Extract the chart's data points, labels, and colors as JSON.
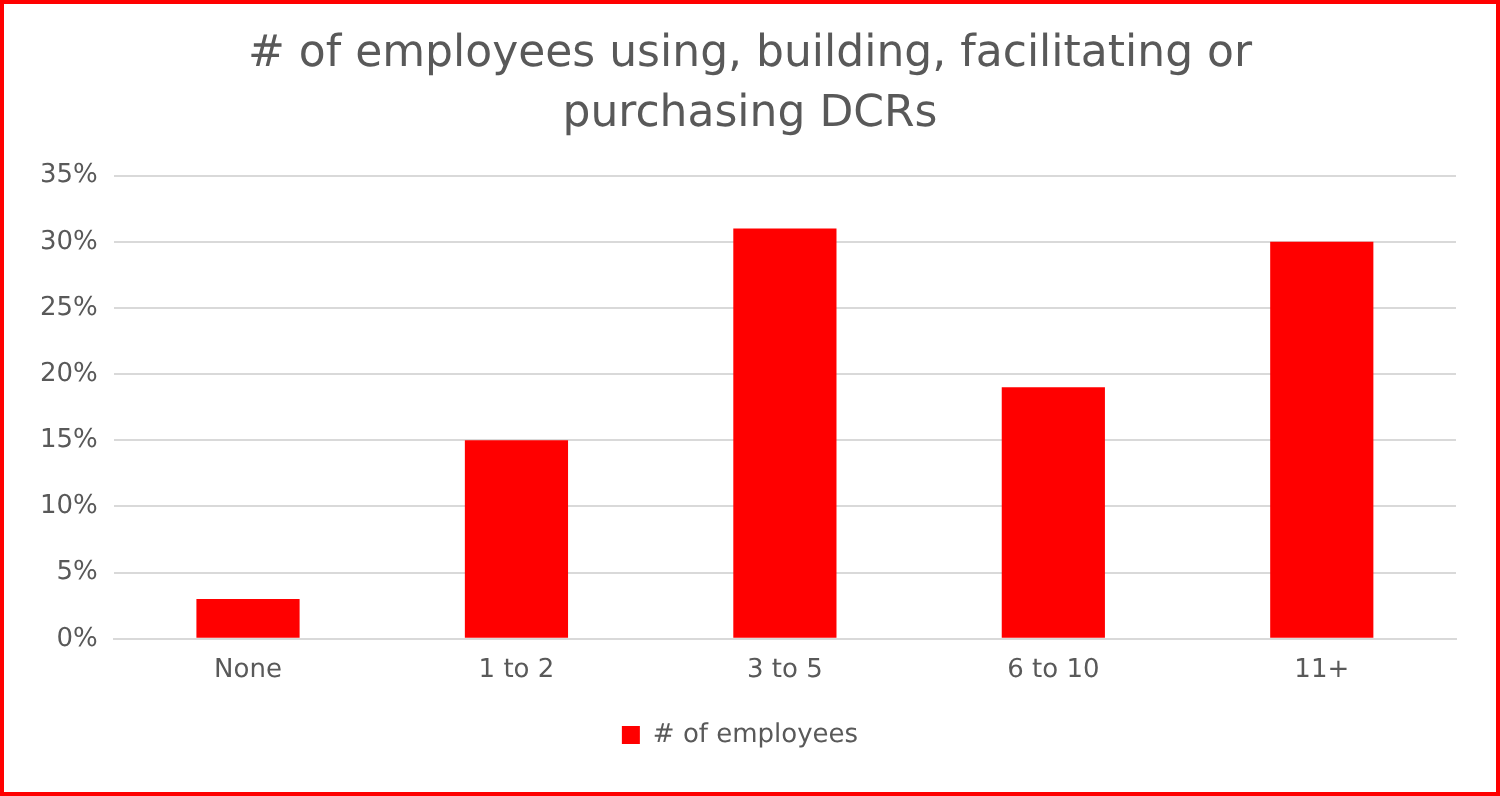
{
  "chart_data": {
    "type": "bar",
    "title": "# of employees using, building, facilitating or purchasing DCRs",
    "categories": [
      "None",
      "1 to 2",
      "3 to 5",
      "6 to 10",
      "11+"
    ],
    "series": [
      {
        "name": "# of employees",
        "color": "#ff0000",
        "values": [
          3,
          15,
          31,
          19,
          30
        ]
      }
    ],
    "ylim": [
      0,
      35
    ],
    "yticks": [
      {
        "value": 0,
        "label": "0%"
      },
      {
        "value": 5,
        "label": "5%"
      },
      {
        "value": 10,
        "label": "10%"
      },
      {
        "value": 15,
        "label": "15%"
      },
      {
        "value": 20,
        "label": "20%"
      },
      {
        "value": 25,
        "label": "25%"
      },
      {
        "value": 30,
        "label": "30%"
      },
      {
        "value": 35,
        "label": "35%"
      }
    ],
    "grid": "y",
    "legend": "bottom"
  }
}
